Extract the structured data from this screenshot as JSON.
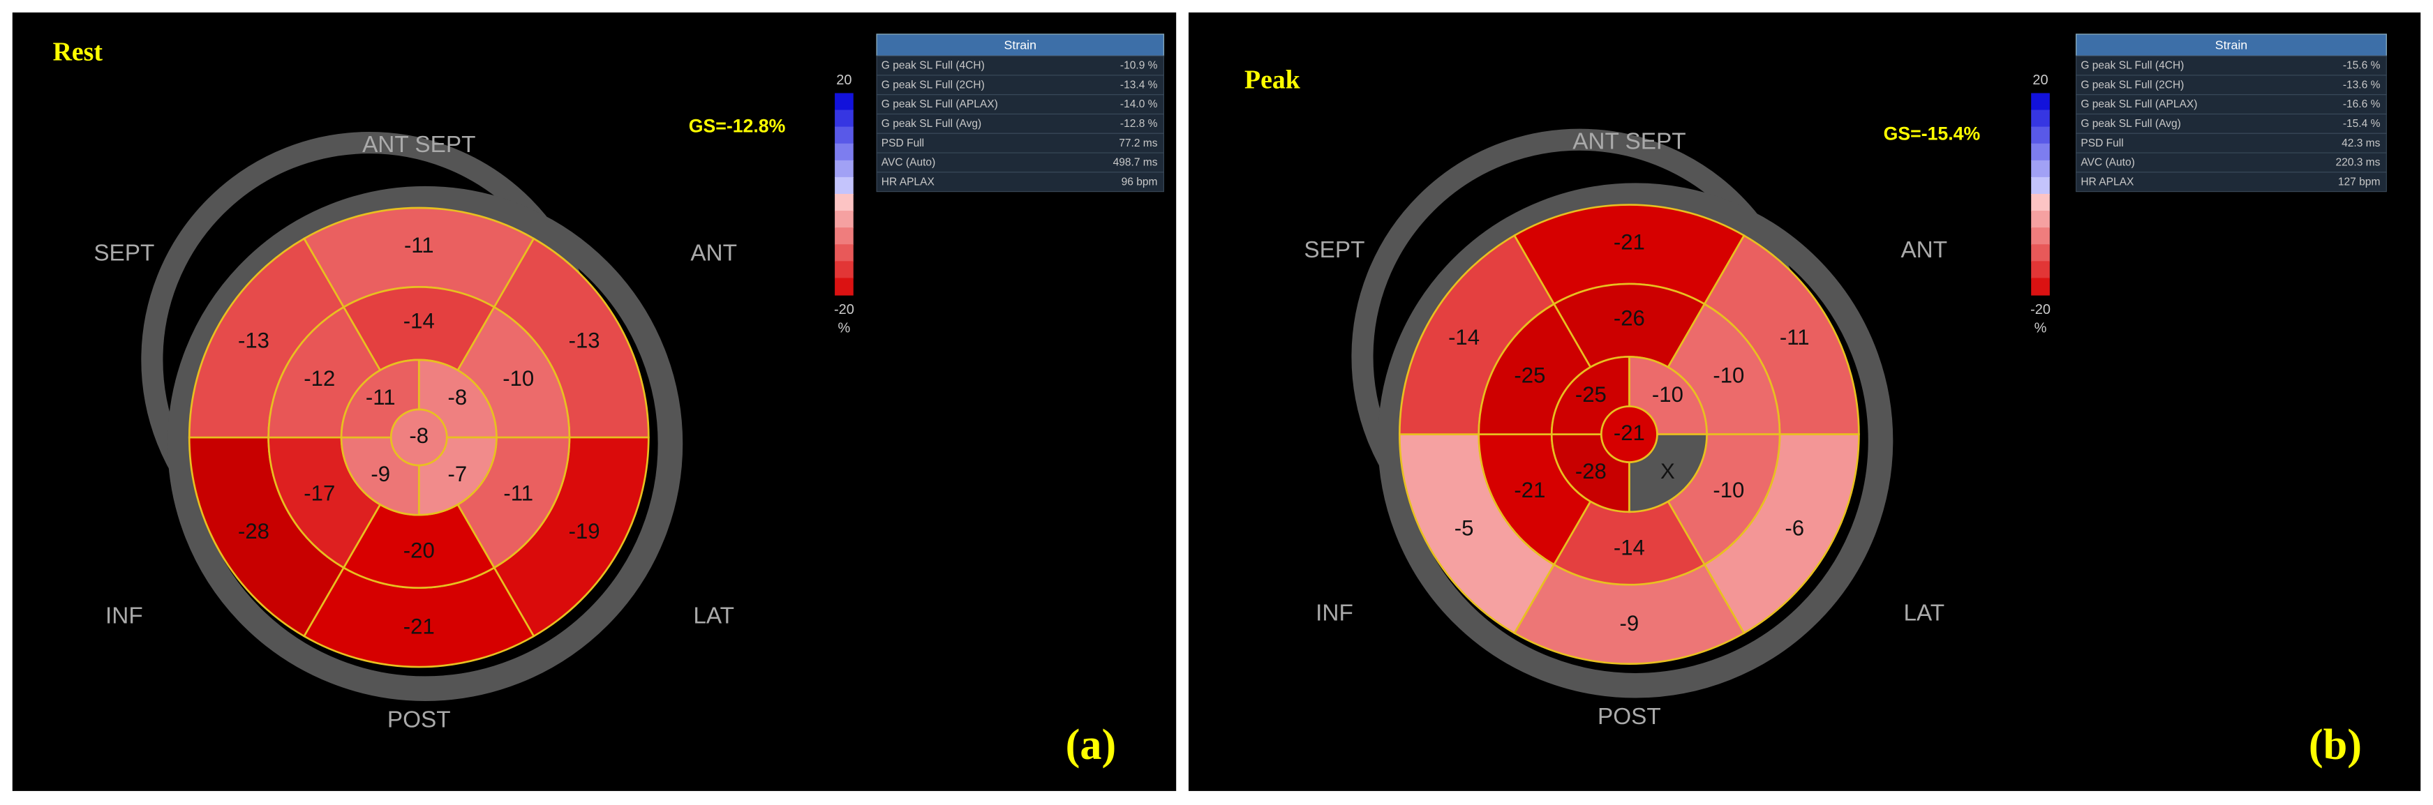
{
  "panels": [
    {
      "title": "Rest",
      "gs": "GS=-12.8%",
      "label": "(a)",
      "wall_labels": {
        "ant_sept": "ANT SEPT",
        "sept": "SEPT",
        "ant": "ANT",
        "inf": "INF",
        "lat": "LAT",
        "post": "POST"
      },
      "segments": {
        "basal": [
          -11,
          -13,
          -19,
          -21,
          -28,
          -13
        ],
        "mid": [
          -14,
          -10,
          -11,
          -20,
          -17,
          -12
        ],
        "apical": [
          -8,
          -7,
          -9,
          -11
        ],
        "apex": -8
      },
      "scale": {
        "max": 20,
        "min": -20,
        "unit": "%"
      },
      "strain_table": {
        "title": "Strain",
        "rows": [
          [
            "G peak SL Full (4CH)",
            "-10.9 %"
          ],
          [
            "G peak SL Full (2CH)",
            "-13.4 %"
          ],
          [
            "G peak SL Full (APLAX)",
            "-14.0 %"
          ],
          [
            "G peak SL Full (Avg)",
            "-12.8 %"
          ],
          [
            "PSD Full",
            "77.2 ms"
          ],
          [
            "AVC (Auto)",
            "498.7 ms"
          ],
          [
            "HR APLAX",
            "96 bpm"
          ]
        ]
      }
    },
    {
      "title": "Peak",
      "gs": "GS=-15.4%",
      "label": "(b)",
      "wall_labels": {
        "ant_sept": "ANT SEPT",
        "sept": "SEPT",
        "ant": "ANT",
        "inf": "INF",
        "lat": "LAT",
        "post": "POST"
      },
      "segments": {
        "basal": [
          -21,
          -11,
          -6,
          -9,
          -5,
          -14
        ],
        "mid": [
          -26,
          -10,
          -10,
          -14,
          -21,
          -25
        ],
        "apical": [
          -10,
          "X",
          -28,
          -25
        ],
        "apex": -21
      },
      "scale": {
        "max": 20,
        "min": -20,
        "unit": "%"
      },
      "strain_table": {
        "title": "Strain",
        "rows": [
          [
            "G peak SL Full (4CH)",
            "-15.6 %"
          ],
          [
            "G peak SL Full (2CH)",
            "-13.6 %"
          ],
          [
            "G peak SL Full (APLAX)",
            "-16.6 %"
          ],
          [
            "G peak SL Full (Avg)",
            "-15.4 %"
          ],
          [
            "PSD Full",
            "42.3 ms"
          ],
          [
            "AVC (Auto)",
            "220.3 ms"
          ],
          [
            "HR APLAX",
            "127 bpm"
          ]
        ]
      }
    }
  ]
}
